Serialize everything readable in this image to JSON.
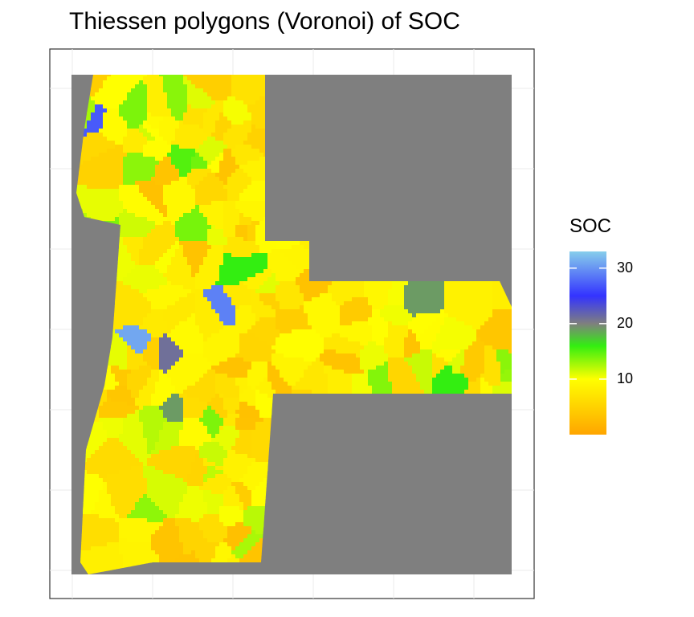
{
  "title": "Thiessen polygons (Voronoi) of SOC",
  "legend": {
    "title": "SOC",
    "ticks": [
      {
        "value": 30,
        "label": "30"
      },
      {
        "value": 20,
        "label": "20"
      },
      {
        "value": 10,
        "label": "10"
      }
    ],
    "range": [
      0,
      33
    ],
    "colors": [
      {
        "value": 0,
        "color": "#ffa500"
      },
      {
        "value": 10,
        "color": "#ffff00"
      },
      {
        "value": 16,
        "color": "#33ee11"
      },
      {
        "value": 20,
        "color": "#7f7f7f"
      },
      {
        "value": 25,
        "color": "#3333ff"
      },
      {
        "value": 33,
        "color": "#87ceeb"
      }
    ]
  },
  "colors": {
    "background_mask": "#7f7f7f",
    "panel_border": "#333333",
    "grid": "#ebebeb"
  }
}
